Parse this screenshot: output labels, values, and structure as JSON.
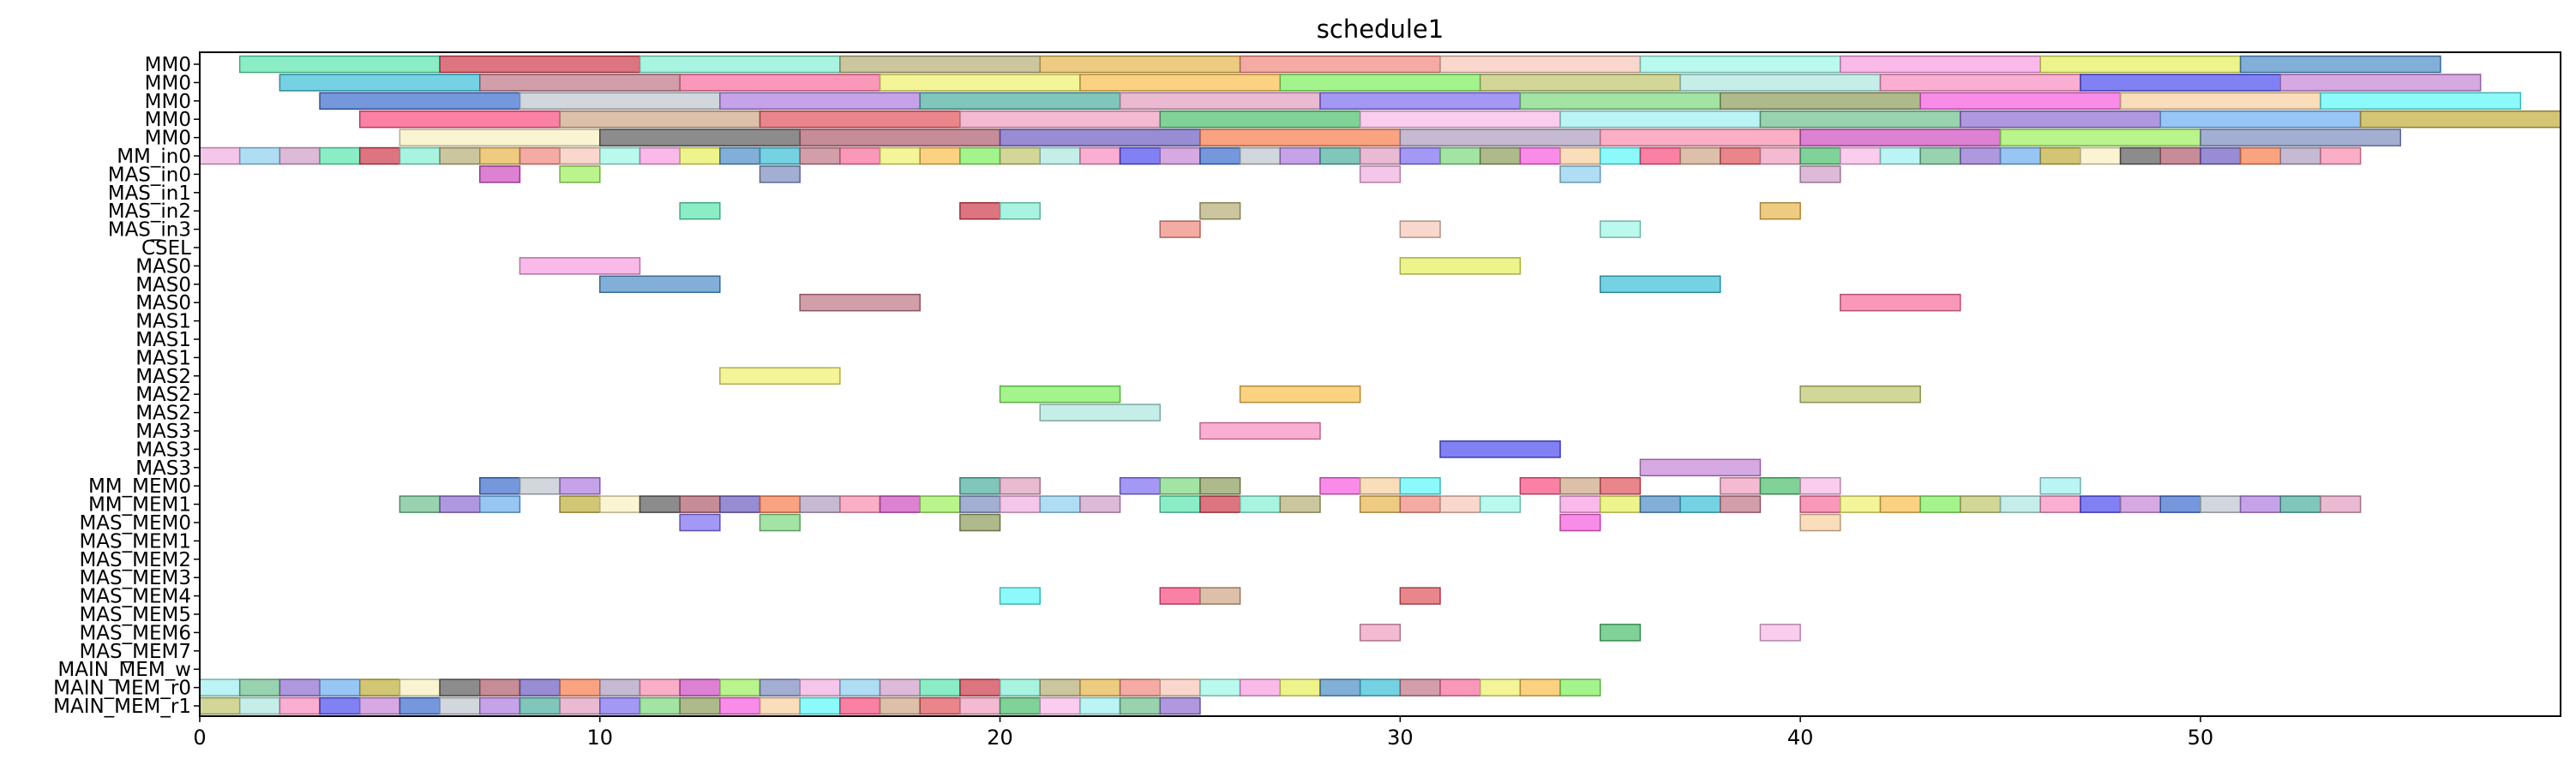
{
  "chart_data": {
    "type": "gantt",
    "title": "schedule1",
    "xlabel": "",
    "ylabel": "",
    "xlim": [
      0,
      59
    ],
    "xticks": [
      0,
      10,
      20,
      30,
      40,
      50
    ],
    "grid": false,
    "legend": "none",
    "rows": [
      "MM0",
      "MM0",
      "MM0",
      "MM0",
      "MM0",
      "MM_in0",
      "MAS_in0",
      "MAS_in1",
      "MAS_in2",
      "MAS_in3",
      "CSEL",
      "MAS0",
      "MAS0",
      "MAS0",
      "MAS1",
      "MAS1",
      "MAS1",
      "MAS2",
      "MAS2",
      "MAS2",
      "MAS3",
      "MAS3",
      "MAS3",
      "MM_MEM0",
      "MM_MEM1",
      "MAS_MEM0",
      "MAS_MEM1",
      "MAS_MEM2",
      "MAS_MEM3",
      "MAS_MEM4",
      "MAS_MEM5",
      "MAS_MEM6",
      "MAS_MEM7",
      "MAIN_MEM_w",
      "MAIN_MEM_r0",
      "MAIN_MEM_r1"
    ],
    "palette": [
      "#5ee6b0",
      "#d04050",
      "#86f0d4",
      "#b8b078",
      "#e6b850",
      "#f08a80",
      "#f8c8b8",
      "#a0f8e8",
      "#f8a0e0",
      "#e8f060",
      "#5090c8",
      "#40c0d8",
      "#c07888",
      "#f870a0",
      "#f0f070",
      "#f8c050",
      "#80f060",
      "#c0c870",
      "#b0e8e0",
      "#f890c0",
      "#5050f0",
      "#c888d8",
      "#4070d0",
      "#c0c8d0",
      "#b080e0",
      "#50b0a0",
      "#e0a0c0",
      "#8070f0",
      "#80d880",
      "#90a060",
      "#f860e0",
      "#f8d0a0",
      "#60f8f8",
      "#f85080",
      "#d0a888",
      "#e05860",
      "#f0a0c0",
      "#50c070",
      "#f8b8e8",
      "#a0f0f0",
      "#70c090",
      "#9070d0",
      "#70b0f0",
      "#c0b040",
      "#f8f0c0",
      "#606060",
      "#b06070",
      "#7060c0",
      "#f88050",
      "#b0a0c0",
      "#f890b0",
      "#d050c0",
      "#a0f060",
      "#8090c0",
      "#f0b0e0",
      "#90d0f0",
      "#d0a0c8"
    ],
    "bars": [
      [
        0,
        1,
        6
      ],
      [
        0,
        6,
        11
      ],
      [
        0,
        11,
        16
      ],
      [
        0,
        16,
        21
      ],
      [
        0,
        21,
        26
      ],
      [
        0,
        26,
        31
      ],
      [
        0,
        31,
        36
      ],
      [
        0,
        36,
        41
      ],
      [
        0,
        41,
        46
      ],
      [
        0,
        46,
        51
      ],
      [
        0,
        51,
        56
      ],
      [
        1,
        2,
        7
      ],
      [
        1,
        7,
        12
      ],
      [
        1,
        12,
        17
      ],
      [
        1,
        17,
        22
      ],
      [
        1,
        22,
        27
      ],
      [
        1,
        27,
        32
      ],
      [
        1,
        32,
        37
      ],
      [
        1,
        37,
        42
      ],
      [
        1,
        42,
        47
      ],
      [
        1,
        47,
        52
      ],
      [
        1,
        52,
        57
      ],
      [
        2,
        3,
        8
      ],
      [
        2,
        8,
        13
      ],
      [
        2,
        13,
        18
      ],
      [
        2,
        18,
        23
      ],
      [
        2,
        23,
        28
      ],
      [
        2,
        28,
        33
      ],
      [
        2,
        33,
        38
      ],
      [
        2,
        38,
        43
      ],
      [
        2,
        43,
        48
      ],
      [
        2,
        48,
        53
      ],
      [
        2,
        53,
        58
      ],
      [
        3,
        4,
        9
      ],
      [
        3,
        9,
        14
      ],
      [
        3,
        14,
        19
      ],
      [
        3,
        19,
        24
      ],
      [
        3,
        24,
        29
      ],
      [
        3,
        29,
        34
      ],
      [
        3,
        34,
        39
      ],
      [
        3,
        39,
        44
      ],
      [
        3,
        44,
        49
      ],
      [
        3,
        49,
        54
      ],
      [
        3,
        54,
        59
      ],
      [
        4,
        5,
        10
      ],
      [
        4,
        10,
        15
      ],
      [
        4,
        15,
        20
      ],
      [
        4,
        20,
        25
      ],
      [
        4,
        25,
        30
      ],
      [
        4,
        30,
        35
      ],
      [
        4,
        35,
        40
      ],
      [
        4,
        40,
        45
      ],
      [
        4,
        45,
        50
      ],
      [
        4,
        50,
        55
      ],
      [
        5,
        0,
        1
      ],
      [
        5,
        1,
        2
      ],
      [
        5,
        2,
        3
      ],
      [
        5,
        3,
        4
      ],
      [
        5,
        4,
        5
      ],
      [
        5,
        5,
        6
      ],
      [
        5,
        6,
        7
      ],
      [
        5,
        7,
        8
      ],
      [
        5,
        8,
        9
      ],
      [
        5,
        9,
        10
      ],
      [
        5,
        10,
        11
      ],
      [
        5,
        11,
        12
      ],
      [
        5,
        12,
        13
      ],
      [
        5,
        13,
        14
      ],
      [
        5,
        14,
        15
      ],
      [
        5,
        15,
        16
      ],
      [
        5,
        16,
        17
      ],
      [
        5,
        17,
        18
      ],
      [
        5,
        18,
        19
      ],
      [
        5,
        19,
        20
      ],
      [
        5,
        20,
        21
      ],
      [
        5,
        21,
        22
      ],
      [
        5,
        22,
        23
      ],
      [
        5,
        23,
        24
      ],
      [
        5,
        24,
        25
      ],
      [
        5,
        25,
        26
      ],
      [
        5,
        26,
        27
      ],
      [
        5,
        27,
        28
      ],
      [
        5,
        28,
        29
      ],
      [
        5,
        29,
        30
      ],
      [
        5,
        30,
        31
      ],
      [
        5,
        31,
        32
      ],
      [
        5,
        32,
        33
      ],
      [
        5,
        33,
        34
      ],
      [
        5,
        34,
        35
      ],
      [
        5,
        35,
        36
      ],
      [
        5,
        36,
        37
      ],
      [
        5,
        37,
        38
      ],
      [
        5,
        38,
        39
      ],
      [
        5,
        39,
        40
      ],
      [
        5,
        40,
        41
      ],
      [
        5,
        41,
        42
      ],
      [
        5,
        42,
        43
      ],
      [
        5,
        43,
        44
      ],
      [
        5,
        44,
        45
      ],
      [
        5,
        45,
        46
      ],
      [
        5,
        46,
        47
      ],
      [
        5,
        47,
        48
      ],
      [
        5,
        48,
        49
      ],
      [
        5,
        49,
        50
      ],
      [
        5,
        50,
        51
      ],
      [
        5,
        51,
        52
      ],
      [
        5,
        52,
        53
      ],
      [
        5,
        53,
        54
      ],
      [
        6,
        7,
        8
      ],
      [
        6,
        9,
        10
      ],
      [
        6,
        14,
        15
      ],
      [
        6,
        29,
        30
      ],
      [
        6,
        34,
        35
      ],
      [
        6,
        40,
        41
      ],
      [
        8,
        12,
        13
      ],
      [
        8,
        19,
        20
      ],
      [
        8,
        20,
        21
      ],
      [
        8,
        25,
        26
      ],
      [
        8,
        39,
        40
      ],
      [
        9,
        24,
        25
      ],
      [
        9,
        30,
        31
      ],
      [
        9,
        35,
        36
      ],
      [
        11,
        8,
        11
      ],
      [
        11,
        30,
        33
      ],
      [
        12,
        10,
        13
      ],
      [
        12,
        35,
        38
      ],
      [
        13,
        15,
        18
      ],
      [
        13,
        41,
        44
      ],
      [
        17,
        13,
        16
      ],
      [
        18,
        26,
        29
      ],
      [
        18,
        20,
        23
      ],
      [
        18,
        40,
        43
      ],
      [
        19,
        21,
        24
      ],
      [
        20,
        25,
        28
      ],
      [
        21,
        31,
        34
      ],
      [
        22,
        36,
        39
      ],
      [
        23,
        7,
        8
      ],
      [
        23,
        8,
        9
      ],
      [
        23,
        9,
        10
      ],
      [
        23,
        19,
        20
      ],
      [
        23,
        20,
        21
      ],
      [
        23,
        23,
        24
      ],
      [
        23,
        24,
        25
      ],
      [
        23,
        25,
        26
      ],
      [
        23,
        28,
        29
      ],
      [
        23,
        29,
        30
      ],
      [
        23,
        30,
        31
      ],
      [
        23,
        33,
        34
      ],
      [
        23,
        34,
        35
      ],
      [
        23,
        35,
        36
      ],
      [
        23,
        38,
        39
      ],
      [
        23,
        39,
        40
      ],
      [
        23,
        40,
        41
      ],
      [
        23,
        46,
        47
      ],
      [
        24,
        5,
        6
      ],
      [
        24,
        6,
        7
      ],
      [
        24,
        7,
        8
      ],
      [
        24,
        9,
        10
      ],
      [
        24,
        10,
        11
      ],
      [
        24,
        11,
        12
      ],
      [
        24,
        12,
        13
      ],
      [
        24,
        13,
        14
      ],
      [
        24,
        14,
        15
      ],
      [
        24,
        15,
        16
      ],
      [
        24,
        16,
        17
      ],
      [
        24,
        17,
        18
      ],
      [
        24,
        18,
        19
      ],
      [
        24,
        19,
        20
      ],
      [
        24,
        20,
        21
      ],
      [
        24,
        21,
        22
      ],
      [
        24,
        22,
        23
      ],
      [
        24,
        24,
        25
      ],
      [
        24,
        25,
        26
      ],
      [
        24,
        26,
        27
      ],
      [
        24,
        27,
        28
      ],
      [
        24,
        29,
        30
      ],
      [
        24,
        30,
        31
      ],
      [
        24,
        31,
        32
      ],
      [
        24,
        32,
        33
      ],
      [
        24,
        34,
        35
      ],
      [
        24,
        35,
        36
      ],
      [
        24,
        36,
        37
      ],
      [
        24,
        37,
        38
      ],
      [
        24,
        38,
        39
      ],
      [
        24,
        40,
        41
      ],
      [
        24,
        41,
        42
      ],
      [
        24,
        42,
        43
      ],
      [
        24,
        43,
        44
      ],
      [
        24,
        44,
        45
      ],
      [
        24,
        45,
        46
      ],
      [
        24,
        46,
        47
      ],
      [
        24,
        47,
        48
      ],
      [
        24,
        48,
        49
      ],
      [
        24,
        49,
        50
      ],
      [
        24,
        50,
        51
      ],
      [
        24,
        51,
        52
      ],
      [
        24,
        52,
        53
      ],
      [
        24,
        53,
        54
      ],
      [
        25,
        12,
        13
      ],
      [
        25,
        14,
        15
      ],
      [
        25,
        19,
        20
      ],
      [
        25,
        34,
        35
      ],
      [
        25,
        40,
        41
      ],
      [
        29,
        20,
        21
      ],
      [
        29,
        24,
        25
      ],
      [
        29,
        25,
        26
      ],
      [
        29,
        30,
        31
      ],
      [
        31,
        29,
        30
      ],
      [
        31,
        35,
        36
      ],
      [
        31,
        39,
        40
      ],
      [
        34,
        0,
        1
      ],
      [
        34,
        1,
        2
      ],
      [
        34,
        2,
        3
      ],
      [
        34,
        3,
        4
      ],
      [
        34,
        4,
        5
      ],
      [
        34,
        5,
        6
      ],
      [
        34,
        6,
        7
      ],
      [
        34,
        7,
        8
      ],
      [
        34,
        8,
        9
      ],
      [
        34,
        9,
        10
      ],
      [
        34,
        10,
        11
      ],
      [
        34,
        11,
        12
      ],
      [
        34,
        12,
        13
      ],
      [
        34,
        13,
        14
      ],
      [
        34,
        14,
        15
      ],
      [
        34,
        15,
        16
      ],
      [
        34,
        16,
        17
      ],
      [
        34,
        17,
        18
      ],
      [
        34,
        18,
        19
      ],
      [
        34,
        19,
        20
      ],
      [
        34,
        20,
        21
      ],
      [
        34,
        21,
        22
      ],
      [
        34,
        22,
        23
      ],
      [
        34,
        23,
        24
      ],
      [
        34,
        24,
        25
      ],
      [
        34,
        25,
        26
      ],
      [
        34,
        26,
        27
      ],
      [
        34,
        27,
        28
      ],
      [
        34,
        28,
        29
      ],
      [
        34,
        29,
        30
      ],
      [
        34,
        30,
        31
      ],
      [
        34,
        31,
        32
      ],
      [
        34,
        32,
        33
      ],
      [
        34,
        33,
        34
      ],
      [
        34,
        34,
        35
      ],
      [
        35,
        0,
        1
      ],
      [
        35,
        1,
        2
      ],
      [
        35,
        2,
        3
      ],
      [
        35,
        3,
        4
      ],
      [
        35,
        4,
        5
      ],
      [
        35,
        5,
        6
      ],
      [
        35,
        6,
        7
      ],
      [
        35,
        7,
        8
      ],
      [
        35,
        8,
        9
      ],
      [
        35,
        9,
        10
      ],
      [
        35,
        10,
        11
      ],
      [
        35,
        11,
        12
      ],
      [
        35,
        12,
        13
      ],
      [
        35,
        13,
        14
      ],
      [
        35,
        14,
        15
      ],
      [
        35,
        15,
        16
      ],
      [
        35,
        16,
        17
      ],
      [
        35,
        17,
        18
      ],
      [
        35,
        18,
        19
      ],
      [
        35,
        19,
        20
      ],
      [
        35,
        20,
        21
      ],
      [
        35,
        21,
        22
      ],
      [
        35,
        22,
        23
      ],
      [
        35,
        23,
        24
      ],
      [
        35,
        24,
        25
      ]
    ]
  }
}
